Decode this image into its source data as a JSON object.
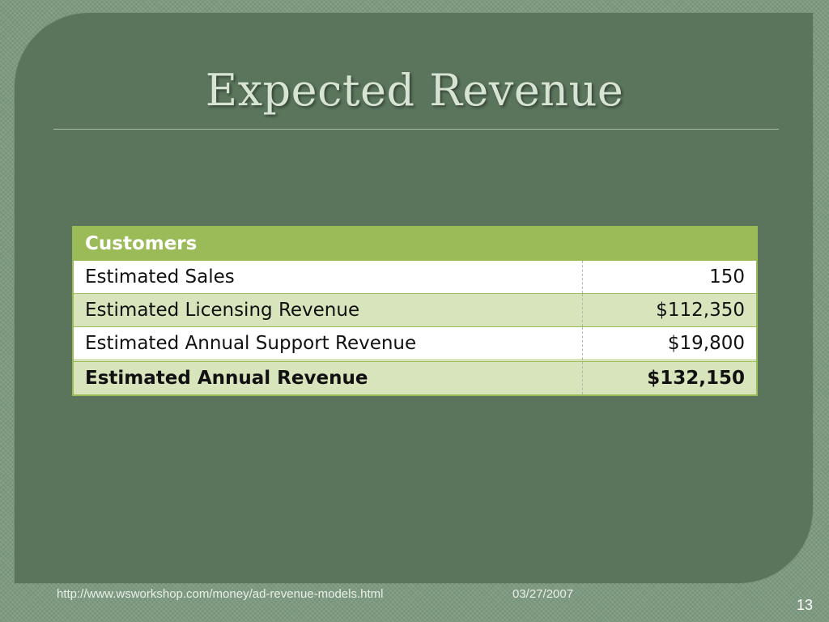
{
  "slide": {
    "title": "Expected Revenue",
    "table": {
      "header": "Customers",
      "rows": [
        {
          "label": "Estimated Sales",
          "value": "150"
        },
        {
          "label": "Estimated Licensing  Revenue",
          "value": "$112,350"
        },
        {
          "label": "Estimated Annual Support  Revenue",
          "value": "$19,800"
        }
      ],
      "total": {
        "label": "Estimated Annual Revenue",
        "value": "$132,150"
      }
    },
    "footer": {
      "url": "http://www.wsworkshop.com/money/ad-revenue-models.html",
      "date": "03/27/2007",
      "page_number": "13"
    },
    "colors": {
      "accent": "#9bbb59",
      "panel": "#5a755c",
      "alt_row": "#d8e4bc"
    }
  }
}
